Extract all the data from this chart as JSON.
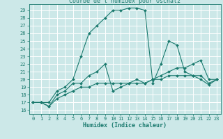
{
  "title": "Courbe de l'humidex pour Oschatz",
  "xlabel": "Humidex (Indice chaleur)",
  "xlim": [
    -0.5,
    23.5
  ],
  "ylim": [
    15.5,
    29.8
  ],
  "yticks": [
    16,
    17,
    18,
    19,
    20,
    21,
    22,
    23,
    24,
    25,
    26,
    27,
    28,
    29
  ],
  "xticks": [
    0,
    1,
    2,
    3,
    4,
    5,
    6,
    7,
    8,
    9,
    10,
    11,
    12,
    13,
    14,
    15,
    16,
    17,
    18,
    19,
    20,
    21,
    22,
    23
  ],
  "bg_color": "#cce8e8",
  "line_color": "#1a7a6e",
  "grid_color": "#ffffff",
  "lines": [
    [
      0,
      17,
      1,
      17,
      2,
      17,
      3,
      18.5,
      4,
      19,
      5,
      20,
      6,
      23,
      7,
      26,
      8,
      27,
      9,
      28,
      10,
      29,
      11,
      29,
      12,
      29.3,
      13,
      29.3,
      14,
      29,
      15,
      19.5,
      16,
      22,
      17,
      25,
      18,
      24.5,
      19,
      21,
      20,
      20.5,
      21,
      20,
      22,
      19.3,
      23,
      20
    ],
    [
      0,
      17,
      1,
      17,
      2,
      16.5,
      3,
      18,
      4,
      18.5,
      5,
      19.5,
      6,
      19.5,
      7,
      20.5,
      8,
      21,
      9,
      22,
      10,
      18.5,
      11,
      19,
      12,
      19.5,
      13,
      19.5,
      14,
      19.5,
      15,
      20,
      16,
      20.5,
      17,
      21,
      18,
      21.5,
      19,
      21.5,
      20,
      22,
      21,
      22.5,
      22,
      20,
      23,
      20
    ],
    [
      0,
      17,
      1,
      17,
      2,
      16.5,
      3,
      17.5,
      4,
      18,
      5,
      18.5,
      6,
      19,
      7,
      19,
      8,
      19.5,
      9,
      19.5,
      10,
      19.5,
      11,
      19.5,
      12,
      19.5,
      13,
      20,
      14,
      19.5,
      15,
      20,
      16,
      20,
      17,
      20.5,
      18,
      20.5,
      19,
      20.5,
      20,
      20.5,
      21,
      20.5,
      22,
      19.5,
      23,
      20
    ]
  ]
}
